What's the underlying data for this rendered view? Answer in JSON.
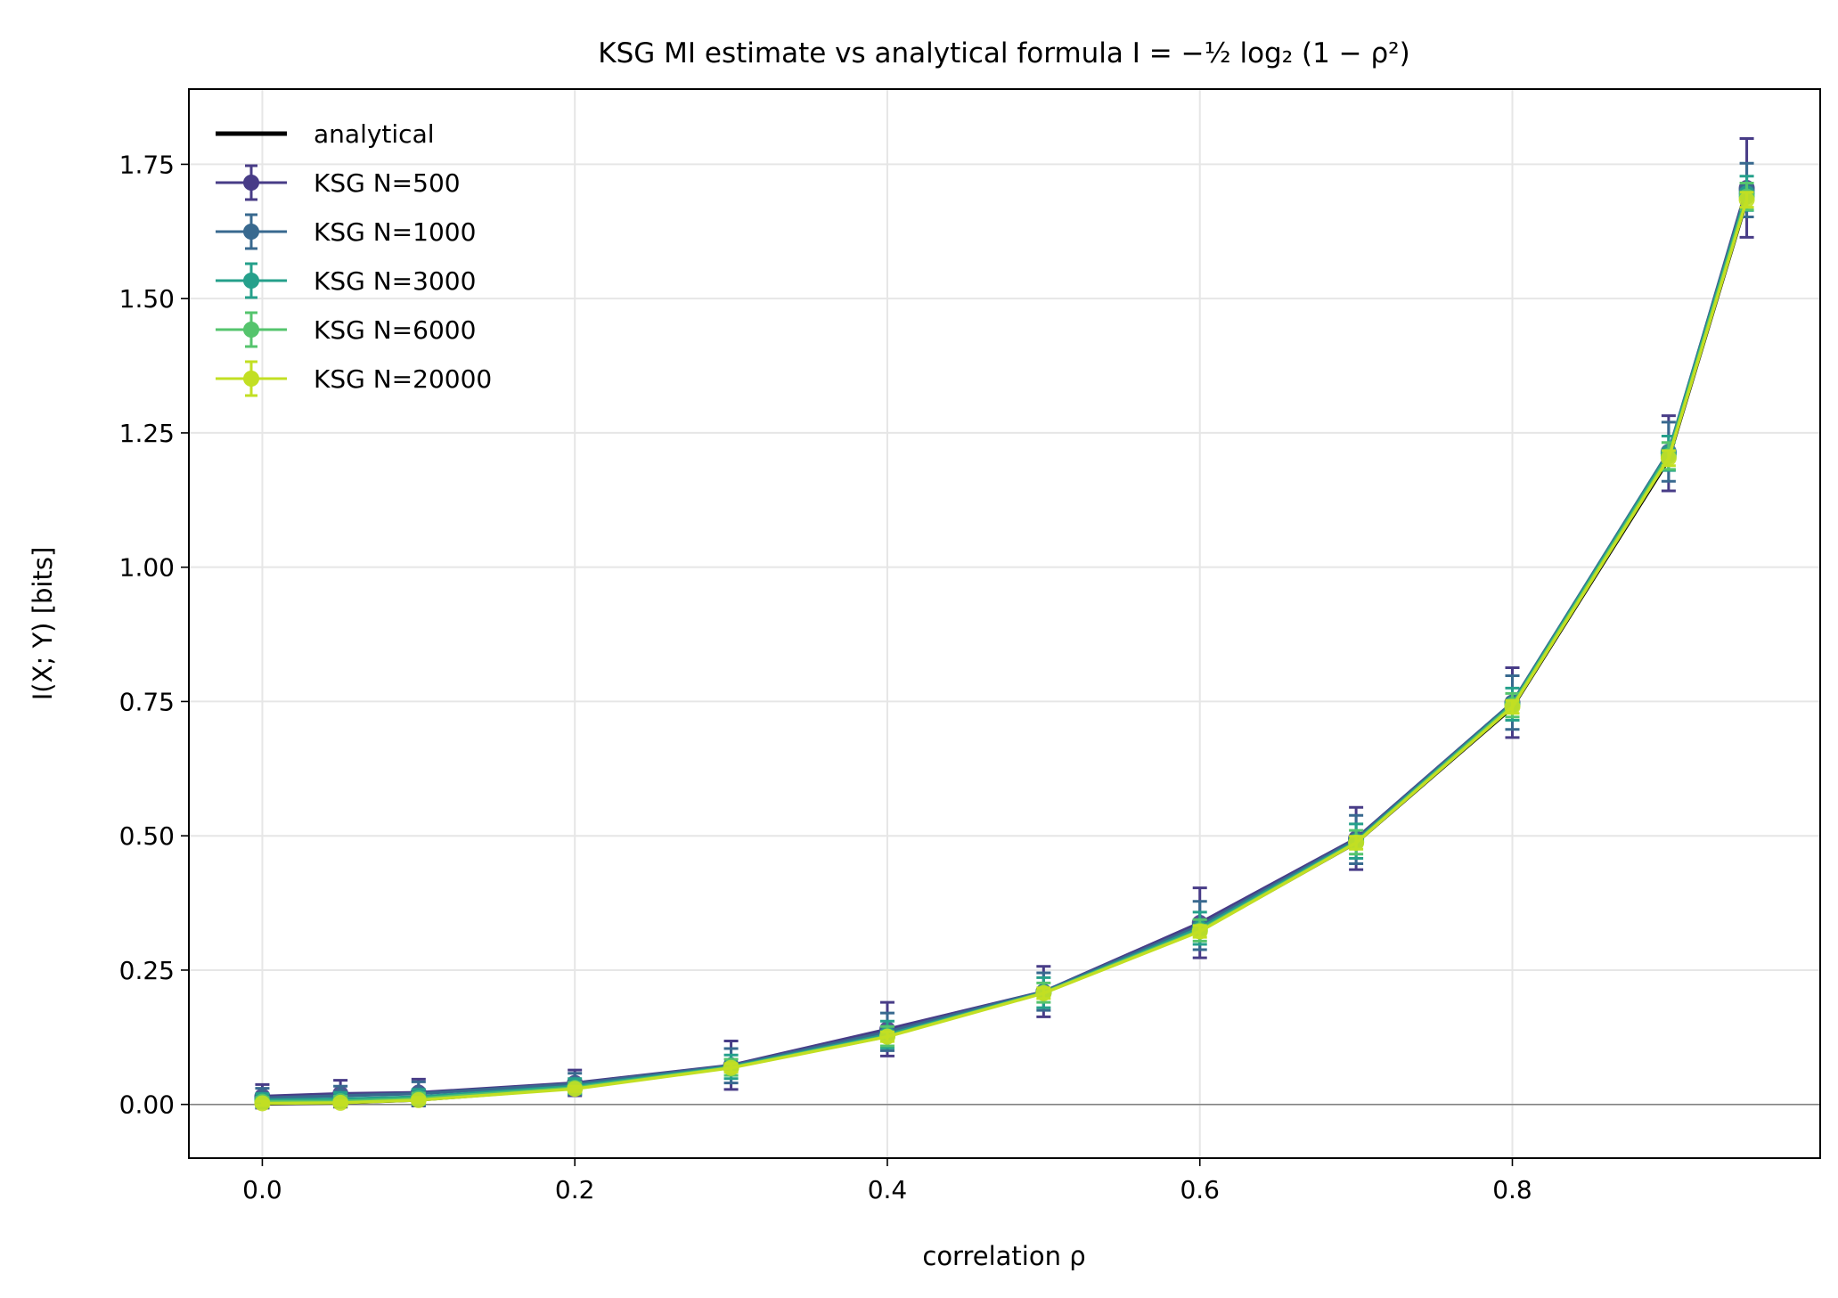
{
  "chart_data": {
    "type": "line",
    "title": "KSG MI estimate vs analytical formula I = −½ log₂ (1 − ρ²)",
    "xlabel": "correlation ρ",
    "ylabel": "I(X; Y)  [bits]",
    "xlim": [
      -0.047,
      0.997
    ],
    "ylim": [
      -0.1,
      1.89
    ],
    "xticks": [
      0.0,
      0.2,
      0.4,
      0.6,
      0.8
    ],
    "xtick_labels": [
      "0.0",
      "0.2",
      "0.4",
      "0.6",
      "0.8"
    ],
    "yticks": [
      0.0,
      0.25,
      0.5,
      0.75,
      1.0,
      1.25,
      1.5,
      1.75
    ],
    "ytick_labels": [
      "0.00",
      "0.25",
      "0.50",
      "0.75",
      "1.00",
      "1.25",
      "1.50",
      "1.75"
    ],
    "grid": true,
    "legend_position": "top-left",
    "x": [
      0.0,
      0.05,
      0.1,
      0.2,
      0.3,
      0.4,
      0.5,
      0.6,
      0.7,
      0.8,
      0.9,
      0.95
    ],
    "analytical": {
      "name": "analytical",
      "color": "#000000",
      "values": [
        0.0,
        0.0018,
        0.0073,
        0.0294,
        0.068,
        0.1258,
        0.2075,
        0.3219,
        0.4857,
        0.737,
        1.198,
        1.679
      ]
    },
    "series": [
      {
        "name": "KSG N=500",
        "color": "#483C87",
        "values": [
          0.015,
          0.02,
          0.022,
          0.04,
          0.073,
          0.14,
          0.21,
          0.338,
          0.495,
          0.748,
          1.212,
          1.706
        ],
        "errors": [
          0.022,
          0.025,
          0.025,
          0.024,
          0.045,
          0.05,
          0.047,
          0.065,
          0.058,
          0.065,
          0.07,
          0.092
        ]
      },
      {
        "name": "KSG N=1000",
        "color": "#38698F",
        "values": [
          0.012,
          0.016,
          0.02,
          0.038,
          0.072,
          0.135,
          0.21,
          0.333,
          0.493,
          0.748,
          1.215,
          1.702
        ],
        "errors": [
          0.018,
          0.018,
          0.022,
          0.02,
          0.032,
          0.035,
          0.035,
          0.045,
          0.045,
          0.05,
          0.055,
          0.05
        ]
      },
      {
        "name": "KSG N=3000",
        "color": "#25A08B",
        "values": [
          0.008,
          0.01,
          0.014,
          0.034,
          0.07,
          0.13,
          0.208,
          0.328,
          0.49,
          0.745,
          1.212,
          1.696
        ],
        "errors": [
          0.012,
          0.012,
          0.014,
          0.014,
          0.022,
          0.025,
          0.028,
          0.03,
          0.032,
          0.03,
          0.032,
          0.032
        ]
      },
      {
        "name": "KSG N=6000",
        "color": "#55C46D",
        "values": [
          0.005,
          0.006,
          0.011,
          0.031,
          0.069,
          0.127,
          0.208,
          0.324,
          0.488,
          0.743,
          1.207,
          1.69
        ],
        "errors": [
          0.008,
          0.009,
          0.01,
          0.01,
          0.015,
          0.018,
          0.018,
          0.02,
          0.022,
          0.022,
          0.025,
          0.025
        ]
      },
      {
        "name": "KSG N=20000",
        "color": "#C2DF23",
        "values": [
          0.002,
          0.003,
          0.008,
          0.029,
          0.068,
          0.126,
          0.207,
          0.322,
          0.487,
          0.74,
          1.203,
          1.684
        ],
        "errors": [
          0.004,
          0.004,
          0.005,
          0.005,
          0.008,
          0.009,
          0.01,
          0.011,
          0.012,
          0.012,
          0.014,
          0.014
        ]
      }
    ]
  }
}
